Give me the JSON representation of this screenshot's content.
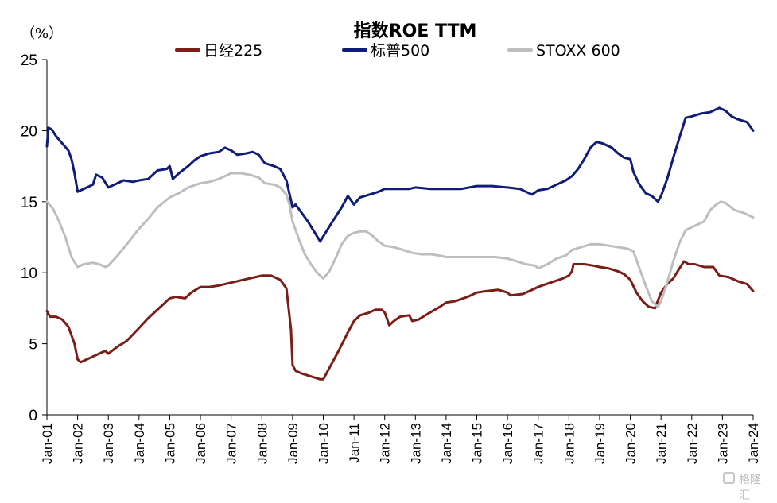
{
  "chart_data": {
    "type": "line",
    "title": "指数ROE TTM",
    "unit_label": "（%）",
    "ylim": [
      0,
      25
    ],
    "yticks": [
      "0",
      "5",
      "10",
      "15",
      "20",
      "25"
    ],
    "xlim": [
      2001,
      2024
    ],
    "xticks": [
      "Jan-01",
      "Jan-02",
      "Jan-03",
      "Jan-04",
      "Jan-05",
      "Jan-06",
      "Jan-07",
      "Jan-08",
      "Jan-09",
      "Jan-10",
      "Jan-11",
      "Jan-12",
      "Jan-13",
      "Jan-14",
      "Jan-15",
      "Jan-16",
      "Jan-17",
      "Jan-18",
      "Jan-19",
      "Jan-20",
      "Jan-21",
      "Jan-22",
      "Jan-23",
      "Jan-24"
    ],
    "legend_position": "top",
    "grid": false,
    "series": [
      {
        "name": "日经225",
        "color": "#7b1e17",
        "points": [
          [
            2001.0,
            7.3
          ],
          [
            2001.1,
            6.9
          ],
          [
            2001.3,
            6.9
          ],
          [
            2001.5,
            6.7
          ],
          [
            2001.7,
            6.2
          ],
          [
            2001.9,
            5.0
          ],
          [
            2002.0,
            3.9
          ],
          [
            2002.1,
            3.7
          ],
          [
            2002.3,
            3.9
          ],
          [
            2002.5,
            4.1
          ],
          [
            2002.7,
            4.3
          ],
          [
            2002.9,
            4.5
          ],
          [
            2003.0,
            4.3
          ],
          [
            2003.3,
            4.8
          ],
          [
            2003.6,
            5.2
          ],
          [
            2004.0,
            6.1
          ],
          [
            2004.3,
            6.8
          ],
          [
            2004.7,
            7.6
          ],
          [
            2005.0,
            8.2
          ],
          [
            2005.2,
            8.3
          ],
          [
            2005.5,
            8.2
          ],
          [
            2005.7,
            8.6
          ],
          [
            2006.0,
            9.0
          ],
          [
            2006.3,
            9.0
          ],
          [
            2006.6,
            9.1
          ],
          [
            2007.0,
            9.3
          ],
          [
            2007.4,
            9.5
          ],
          [
            2007.8,
            9.7
          ],
          [
            2008.0,
            9.8
          ],
          [
            2008.3,
            9.8
          ],
          [
            2008.6,
            9.5
          ],
          [
            2008.8,
            8.9
          ],
          [
            2008.95,
            6.0
          ],
          [
            2009.0,
            3.5
          ],
          [
            2009.1,
            3.1
          ],
          [
            2009.3,
            2.9
          ],
          [
            2009.6,
            2.7
          ],
          [
            2009.9,
            2.5
          ],
          [
            2010.0,
            2.5
          ],
          [
            2010.2,
            3.3
          ],
          [
            2010.5,
            4.5
          ],
          [
            2010.8,
            5.8
          ],
          [
            2011.0,
            6.6
          ],
          [
            2011.2,
            7.0
          ],
          [
            2011.5,
            7.2
          ],
          [
            2011.7,
            7.4
          ],
          [
            2011.9,
            7.4
          ],
          [
            2012.0,
            7.2
          ],
          [
            2012.15,
            6.3
          ],
          [
            2012.3,
            6.6
          ],
          [
            2012.5,
            6.9
          ],
          [
            2012.8,
            7.0
          ],
          [
            2012.9,
            6.6
          ],
          [
            2013.1,
            6.7
          ],
          [
            2013.4,
            7.1
          ],
          [
            2013.8,
            7.6
          ],
          [
            2014.0,
            7.9
          ],
          [
            2014.3,
            8.0
          ],
          [
            2014.7,
            8.3
          ],
          [
            2015.0,
            8.6
          ],
          [
            2015.3,
            8.7
          ],
          [
            2015.7,
            8.8
          ],
          [
            2016.0,
            8.6
          ],
          [
            2016.1,
            8.4
          ],
          [
            2016.5,
            8.5
          ],
          [
            2016.8,
            8.8
          ],
          [
            2017.0,
            9.0
          ],
          [
            2017.4,
            9.3
          ],
          [
            2017.8,
            9.6
          ],
          [
            2018.0,
            9.8
          ],
          [
            2018.1,
            10.1
          ],
          [
            2018.15,
            10.6
          ],
          [
            2018.5,
            10.6
          ],
          [
            2018.8,
            10.5
          ],
          [
            2019.0,
            10.4
          ],
          [
            2019.3,
            10.3
          ],
          [
            2019.6,
            10.1
          ],
          [
            2019.8,
            9.9
          ],
          [
            2020.0,
            9.5
          ],
          [
            2020.2,
            8.6
          ],
          [
            2020.4,
            8.0
          ],
          [
            2020.6,
            7.6
          ],
          [
            2020.8,
            7.5
          ],
          [
            2021.0,
            8.6
          ],
          [
            2021.2,
            9.2
          ],
          [
            2021.4,
            9.6
          ],
          [
            2021.6,
            10.3
          ],
          [
            2021.75,
            10.8
          ],
          [
            2021.9,
            10.6
          ],
          [
            2022.1,
            10.6
          ],
          [
            2022.4,
            10.4
          ],
          [
            2022.7,
            10.4
          ],
          [
            2022.9,
            9.8
          ],
          [
            2023.2,
            9.7
          ],
          [
            2023.5,
            9.4
          ],
          [
            2023.8,
            9.2
          ],
          [
            2024.0,
            8.7
          ]
        ]
      },
      {
        "name": "标普500",
        "color": "#0f1d78",
        "points": [
          [
            2001.0,
            18.9
          ],
          [
            2001.05,
            20.2
          ],
          [
            2001.15,
            20.1
          ],
          [
            2001.3,
            19.6
          ],
          [
            2001.5,
            19.1
          ],
          [
            2001.7,
            18.6
          ],
          [
            2001.8,
            18.0
          ],
          [
            2001.9,
            17.0
          ],
          [
            2002.0,
            15.7
          ],
          [
            2002.1,
            15.8
          ],
          [
            2002.3,
            16.0
          ],
          [
            2002.5,
            16.2
          ],
          [
            2002.6,
            16.9
          ],
          [
            2002.8,
            16.7
          ],
          [
            2003.0,
            16.0
          ],
          [
            2003.2,
            16.2
          ],
          [
            2003.5,
            16.5
          ],
          [
            2003.8,
            16.4
          ],
          [
            2004.0,
            16.5
          ],
          [
            2004.3,
            16.6
          ],
          [
            2004.6,
            17.2
          ],
          [
            2004.9,
            17.3
          ],
          [
            2005.0,
            17.5
          ],
          [
            2005.1,
            16.6
          ],
          [
            2005.3,
            17.0
          ],
          [
            2005.6,
            17.5
          ],
          [
            2005.8,
            17.9
          ],
          [
            2006.0,
            18.2
          ],
          [
            2006.3,
            18.4
          ],
          [
            2006.6,
            18.5
          ],
          [
            2006.8,
            18.8
          ],
          [
            2007.0,
            18.6
          ],
          [
            2007.2,
            18.3
          ],
          [
            2007.5,
            18.4
          ],
          [
            2007.7,
            18.5
          ],
          [
            2007.9,
            18.3
          ],
          [
            2008.1,
            17.7
          ],
          [
            2008.4,
            17.5
          ],
          [
            2008.6,
            17.3
          ],
          [
            2008.8,
            16.5
          ],
          [
            2009.0,
            14.6
          ],
          [
            2009.1,
            14.8
          ],
          [
            2009.3,
            14.2
          ],
          [
            2009.5,
            13.6
          ],
          [
            2009.7,
            12.9
          ],
          [
            2009.9,
            12.2
          ],
          [
            2010.1,
            12.9
          ],
          [
            2010.3,
            13.6
          ],
          [
            2010.6,
            14.6
          ],
          [
            2010.8,
            15.4
          ],
          [
            2011.0,
            14.8
          ],
          [
            2011.2,
            15.3
          ],
          [
            2011.5,
            15.5
          ],
          [
            2011.8,
            15.7
          ],
          [
            2012.0,
            15.9
          ],
          [
            2012.4,
            15.9
          ],
          [
            2012.8,
            15.9
          ],
          [
            2013.0,
            16.0
          ],
          [
            2013.5,
            15.9
          ],
          [
            2014.0,
            15.9
          ],
          [
            2014.5,
            15.9
          ],
          [
            2015.0,
            16.1
          ],
          [
            2015.5,
            16.1
          ],
          [
            2016.0,
            16.0
          ],
          [
            2016.4,
            15.9
          ],
          [
            2016.8,
            15.5
          ],
          [
            2017.0,
            15.8
          ],
          [
            2017.3,
            15.9
          ],
          [
            2017.6,
            16.2
          ],
          [
            2017.9,
            16.5
          ],
          [
            2018.1,
            16.8
          ],
          [
            2018.3,
            17.3
          ],
          [
            2018.5,
            18.0
          ],
          [
            2018.7,
            18.8
          ],
          [
            2018.9,
            19.2
          ],
          [
            2019.1,
            19.1
          ],
          [
            2019.4,
            18.8
          ],
          [
            2019.6,
            18.4
          ],
          [
            2019.8,
            18.1
          ],
          [
            2020.0,
            18.0
          ],
          [
            2020.1,
            17.1
          ],
          [
            2020.3,
            16.2
          ],
          [
            2020.5,
            15.6
          ],
          [
            2020.7,
            15.4
          ],
          [
            2020.9,
            15.0
          ],
          [
            2021.0,
            15.4
          ],
          [
            2021.2,
            16.6
          ],
          [
            2021.4,
            18.1
          ],
          [
            2021.6,
            19.5
          ],
          [
            2021.8,
            20.9
          ],
          [
            2022.0,
            21.0
          ],
          [
            2022.3,
            21.2
          ],
          [
            2022.6,
            21.3
          ],
          [
            2022.9,
            21.6
          ],
          [
            2023.1,
            21.4
          ],
          [
            2023.3,
            21.0
          ],
          [
            2023.5,
            20.8
          ],
          [
            2023.8,
            20.6
          ],
          [
            2024.0,
            20.0
          ]
        ]
      },
      {
        "name": "STOXX 600",
        "color": "#bebebe",
        "points": [
          [
            2001.0,
            15.0
          ],
          [
            2001.2,
            14.5
          ],
          [
            2001.4,
            13.6
          ],
          [
            2001.6,
            12.5
          ],
          [
            2001.8,
            11.1
          ],
          [
            2002.0,
            10.4
          ],
          [
            2002.2,
            10.6
          ],
          [
            2002.5,
            10.7
          ],
          [
            2002.7,
            10.6
          ],
          [
            2002.9,
            10.4
          ],
          [
            2003.0,
            10.5
          ],
          [
            2003.3,
            11.2
          ],
          [
            2003.6,
            12.0
          ],
          [
            2004.0,
            13.1
          ],
          [
            2004.3,
            13.8
          ],
          [
            2004.6,
            14.6
          ],
          [
            2005.0,
            15.3
          ],
          [
            2005.3,
            15.6
          ],
          [
            2005.6,
            16.0
          ],
          [
            2006.0,
            16.3
          ],
          [
            2006.3,
            16.4
          ],
          [
            2006.6,
            16.6
          ],
          [
            2007.0,
            17.0
          ],
          [
            2007.3,
            17.0
          ],
          [
            2007.6,
            16.9
          ],
          [
            2007.9,
            16.7
          ],
          [
            2008.1,
            16.3
          ],
          [
            2008.4,
            16.2
          ],
          [
            2008.6,
            16.0
          ],
          [
            2008.8,
            15.5
          ],
          [
            2008.9,
            14.8
          ],
          [
            2009.0,
            13.6
          ],
          [
            2009.2,
            12.4
          ],
          [
            2009.4,
            11.3
          ],
          [
            2009.6,
            10.6
          ],
          [
            2009.8,
            10.0
          ],
          [
            2010.0,
            9.6
          ],
          [
            2010.2,
            10.1
          ],
          [
            2010.4,
            11.0
          ],
          [
            2010.6,
            12.0
          ],
          [
            2010.8,
            12.6
          ],
          [
            2011.0,
            12.8
          ],
          [
            2011.2,
            12.9
          ],
          [
            2011.4,
            12.9
          ],
          [
            2011.6,
            12.6
          ],
          [
            2011.8,
            12.2
          ],
          [
            2012.0,
            11.9
          ],
          [
            2012.3,
            11.8
          ],
          [
            2012.6,
            11.6
          ],
          [
            2012.9,
            11.4
          ],
          [
            2013.2,
            11.3
          ],
          [
            2013.5,
            11.3
          ],
          [
            2013.8,
            11.2
          ],
          [
            2014.0,
            11.1
          ],
          [
            2014.4,
            11.1
          ],
          [
            2014.8,
            11.1
          ],
          [
            2015.2,
            11.1
          ],
          [
            2015.6,
            11.1
          ],
          [
            2016.0,
            11.0
          ],
          [
            2016.3,
            10.8
          ],
          [
            2016.6,
            10.6
          ],
          [
            2016.9,
            10.5
          ],
          [
            2017.0,
            10.3
          ],
          [
            2017.3,
            10.6
          ],
          [
            2017.6,
            11.0
          ],
          [
            2017.9,
            11.2
          ],
          [
            2018.1,
            11.6
          ],
          [
            2018.4,
            11.8
          ],
          [
            2018.7,
            12.0
          ],
          [
            2019.0,
            12.0
          ],
          [
            2019.3,
            11.9
          ],
          [
            2019.6,
            11.8
          ],
          [
            2019.9,
            11.7
          ],
          [
            2020.1,
            11.5
          ],
          [
            2020.3,
            10.3
          ],
          [
            2020.5,
            9.1
          ],
          [
            2020.7,
            8.0
          ],
          [
            2020.9,
            7.6
          ],
          [
            2021.0,
            8.0
          ],
          [
            2021.2,
            9.3
          ],
          [
            2021.4,
            10.8
          ],
          [
            2021.6,
            12.1
          ],
          [
            2021.8,
            13.0
          ],
          [
            2022.0,
            13.2
          ],
          [
            2022.2,
            13.4
          ],
          [
            2022.4,
            13.6
          ],
          [
            2022.6,
            14.4
          ],
          [
            2022.8,
            14.8
          ],
          [
            2022.95,
            15.0
          ],
          [
            2023.1,
            14.9
          ],
          [
            2023.4,
            14.4
          ],
          [
            2023.7,
            14.2
          ],
          [
            2024.0,
            13.9
          ]
        ]
      }
    ]
  },
  "watermark": {
    "text": "格隆汇"
  }
}
